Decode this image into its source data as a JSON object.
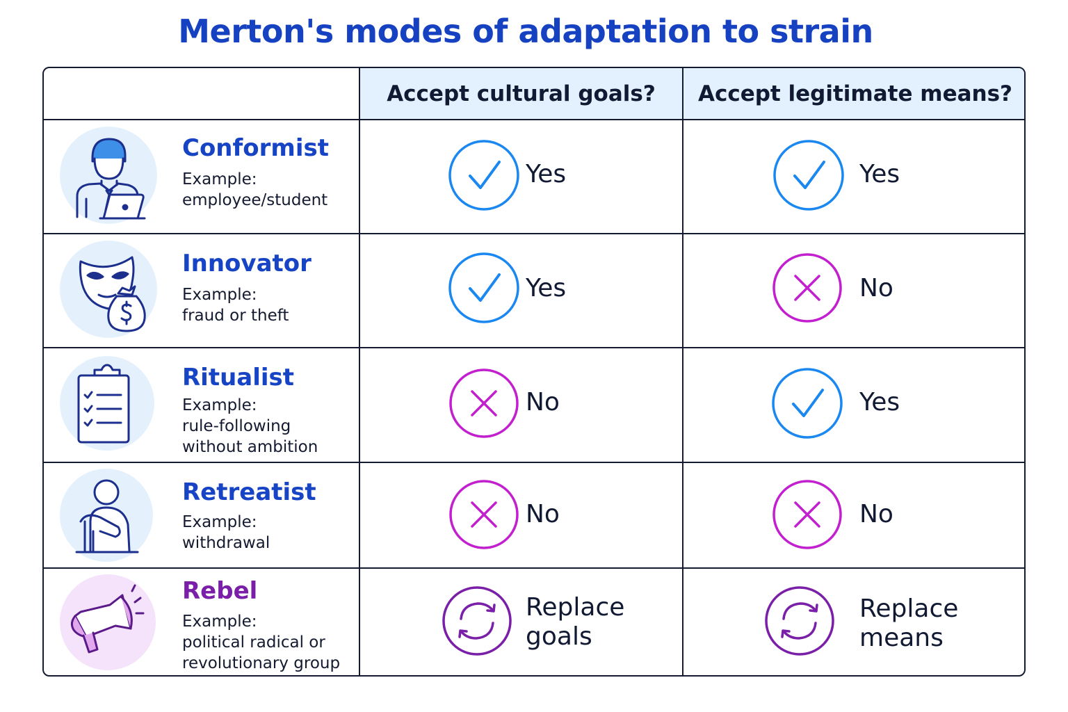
{
  "title": "Merton's modes of adaptation to strain",
  "headers": {
    "mode": "",
    "goals": "Accept cultural goals?",
    "means": "Accept legitimate means?"
  },
  "colors": {
    "title": "#1642c2",
    "yes": "#1a88f0",
    "no": "#c21fcf",
    "replace": "#7a1fa8",
    "header_bg": "#e2f1fd"
  },
  "rows": [
    {
      "name": "Conformist",
      "example_label": "Example:",
      "example": "employee/student",
      "icon": "office-worker-icon",
      "goals": {
        "mark": "check",
        "text": "Yes"
      },
      "means": {
        "mark": "check",
        "text": "Yes"
      }
    },
    {
      "name": "Innovator",
      "example_label": "Example:",
      "example": "fraud or theft",
      "icon": "mask-money-bag-icon",
      "goals": {
        "mark": "check",
        "text": "Yes"
      },
      "means": {
        "mark": "cross",
        "text": "No"
      }
    },
    {
      "name": "Ritualist",
      "example_label": "Example:",
      "example": "rule-following without ambition",
      "icon": "checklist-clipboard-icon",
      "goals": {
        "mark": "cross",
        "text": "No"
      },
      "means": {
        "mark": "check",
        "text": "Yes"
      }
    },
    {
      "name": "Retreatist",
      "example_label": "Example:",
      "example": "withdrawal",
      "icon": "sitting-person-icon",
      "goals": {
        "mark": "cross",
        "text": "No"
      },
      "means": {
        "mark": "cross",
        "text": "No"
      }
    },
    {
      "name": "Rebel",
      "example_label": "Example:",
      "example": "political radical or revolutionary group",
      "icon": "megaphone-icon",
      "goals": {
        "mark": "replace",
        "text_line1": "Replace",
        "text_line2": "goals"
      },
      "means": {
        "mark": "replace",
        "text_line1": "Replace",
        "text_line2": "means"
      }
    }
  ]
}
